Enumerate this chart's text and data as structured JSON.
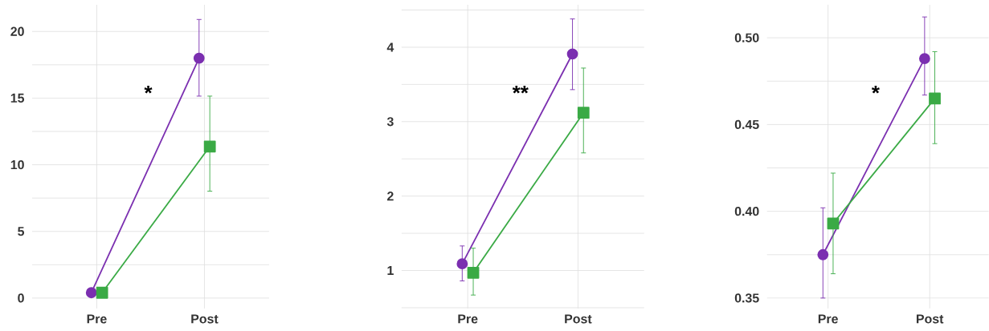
{
  "chart_data": [
    {
      "type": "line",
      "categories": [
        "Pre",
        "Post"
      ],
      "ylim": [
        -0.78,
        22
      ],
      "yticks": [
        0,
        {
          "value": 2.5,
          "label": null
        },
        5,
        {
          "value": 7.5,
          "label": null
        },
        10,
        {
          "value": 12.5,
          "label": null
        },
        15,
        {
          "value": 17.5,
          "label": null
        },
        20
      ],
      "grid": true,
      "annotations": [
        "*"
      ],
      "series": [
        {
          "color": "#7b2fb0",
          "marker": "circle",
          "values": [
            0.4,
            18.0
          ],
          "errors": [
            null,
            [
              15.15,
              20.9
            ]
          ]
        },
        {
          "color": "#3aaa45",
          "marker": "square",
          "values": [
            0.4,
            11.37
          ],
          "errors": [
            [
              0.1,
              0.7
            ],
            [
              8.02,
              15.15
            ]
          ]
        }
      ]
    },
    {
      "type": "line",
      "categories": [
        "Pre",
        "Post"
      ],
      "ylim": [
        0.49,
        4.57
      ],
      "yticks": [
        {
          "value": 0.5,
          "label": null
        },
        1,
        {
          "value": 1.5,
          "label": null
        },
        2,
        {
          "value": 2.5,
          "label": null
        },
        3,
        {
          "value": 3.5,
          "label": null
        },
        4,
        {
          "value": 4.5,
          "label": null
        }
      ],
      "grid": true,
      "annotations": [
        "**"
      ],
      "series": [
        {
          "color": "#7b2fb0",
          "marker": "circle",
          "values": [
            1.09,
            3.91
          ],
          "errors": [
            [
              0.86,
              1.33
            ],
            [
              3.43,
              4.38
            ]
          ]
        },
        {
          "color": "#3aaa45",
          "marker": "square",
          "values": [
            0.97,
            3.12
          ],
          "errors": [
            [
              0.67,
              1.3
            ],
            [
              2.58,
              3.72
            ]
          ]
        }
      ]
    },
    {
      "type": "line",
      "categories": [
        "Pre",
        "Post"
      ],
      "ylim": [
        0.344,
        0.519
      ],
      "yticks": [
        {
          "value": 0.35,
          "label": "0.35"
        },
        {
          "value": 0.375,
          "label": null
        },
        {
          "value": 0.4,
          "label": "0.40"
        },
        {
          "value": 0.425,
          "label": null
        },
        {
          "value": 0.45,
          "label": "0.45"
        },
        {
          "value": 0.475,
          "label": null
        },
        {
          "value": 0.5,
          "label": "0.50"
        }
      ],
      "grid": true,
      "annotations": [
        "*"
      ],
      "series": [
        {
          "color": "#7b2fb0",
          "marker": "circle",
          "values": [
            0.375,
            0.488
          ],
          "errors": [
            [
              0.35,
              0.402
            ],
            [
              0.467,
              0.512
            ]
          ]
        },
        {
          "color": "#3aaa45",
          "marker": "square",
          "values": [
            0.393,
            0.465
          ],
          "errors": [
            [
              0.364,
              0.422
            ],
            [
              0.439,
              0.492
            ]
          ]
        }
      ]
    }
  ]
}
